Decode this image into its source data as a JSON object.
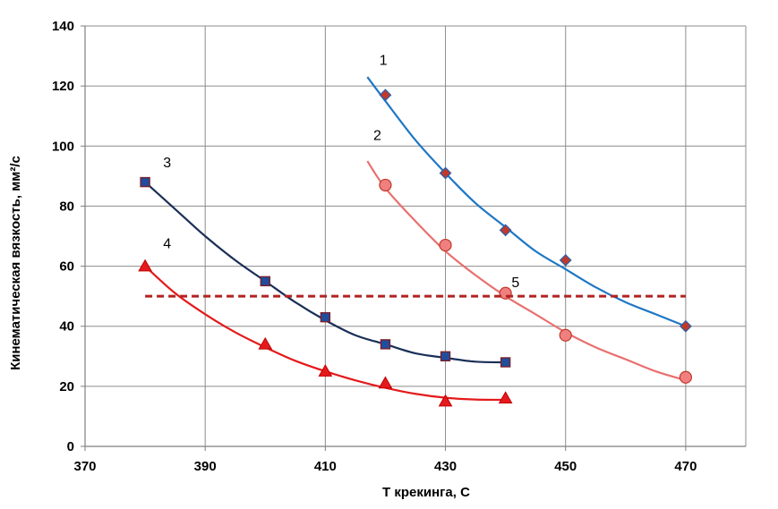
{
  "chart_data": {
    "type": "scatter",
    "xlabel": "Т крекинга, С",
    "ylabel": "Кинематическая  вязкость, мм²/с",
    "xlim": [
      370,
      480
    ],
    "ylim": [
      0,
      140
    ],
    "x_ticks": [
      370,
      390,
      410,
      430,
      450,
      470
    ],
    "y_ticks": [
      0,
      20,
      40,
      60,
      80,
      100,
      120,
      140
    ],
    "grid": true,
    "series": [
      {
        "name": "1",
        "marker": "diamond",
        "marker_color": "#c0392b",
        "line_color": "#1f77c4",
        "x": [
          420,
          430,
          440,
          450,
          470
        ],
        "y": [
          117,
          91,
          72,
          62,
          40
        ],
        "fit_curve": {
          "x": [
            417,
            420,
            425,
            430,
            435,
            440,
            445,
            450,
            455,
            460,
            465,
            470
          ],
          "y": [
            123,
            115,
            102,
            91,
            81,
            73,
            65,
            59,
            53,
            48,
            44,
            40
          ]
        }
      },
      {
        "name": "2",
        "marker": "circle",
        "marker_color": "#f08080",
        "line_color": "#e8706f",
        "x": [
          420,
          430,
          440,
          450,
          470
        ],
        "y": [
          87,
          67,
          51,
          37,
          23
        ],
        "fit_curve": {
          "x": [
            417,
            420,
            425,
            430,
            435,
            440,
            445,
            450,
            455,
            460,
            465,
            470
          ],
          "y": [
            95,
            86,
            75,
            65,
            57,
            50,
            44,
            38,
            33,
            29,
            25,
            22
          ]
        }
      },
      {
        "name": "3",
        "marker": "square",
        "marker_color": "#1f4e9e",
        "line_color": "#1a2f57",
        "x": [
          380,
          400,
          410,
          420,
          430,
          440
        ],
        "y": [
          88,
          55,
          43,
          34,
          30,
          28
        ],
        "fit_curve": {
          "x": [
            380,
            385,
            390,
            395,
            400,
            405,
            410,
            415,
            420,
            425,
            430,
            435,
            440
          ],
          "y": [
            88,
            79,
            70,
            62,
            55,
            48,
            42,
            37,
            34,
            31,
            29.5,
            28.2,
            28
          ]
        }
      },
      {
        "name": "4",
        "marker": "triangle",
        "marker_color": "#e41a1c",
        "line_color": "#e41a1c",
        "x": [
          380,
          400,
          410,
          420,
          430,
          440
        ],
        "y": [
          60,
          34,
          25,
          21,
          15,
          16
        ],
        "fit_curve": {
          "x": [
            380,
            385,
            390,
            395,
            400,
            405,
            410,
            415,
            420,
            425,
            430,
            435,
            440
          ],
          "y": [
            60,
            51,
            44,
            38,
            33,
            28.5,
            25,
            22,
            19.5,
            17.5,
            16.2,
            15.6,
            15.5
          ]
        }
      },
      {
        "name": "5",
        "marker": "none",
        "line_color": "#b22222",
        "line_style": "dashed",
        "x": [
          380,
          470
        ],
        "y": [
          50,
          50
        ]
      }
    ],
    "curve_labels": [
      {
        "text": "1",
        "x": 419,
        "y": 127
      },
      {
        "text": "2",
        "x": 418,
        "y": 102
      },
      {
        "text": "3",
        "x": 383,
        "y": 93
      },
      {
        "text": "4",
        "x": 383,
        "y": 66
      },
      {
        "text": "5",
        "x": 441,
        "y": 53
      }
    ]
  }
}
